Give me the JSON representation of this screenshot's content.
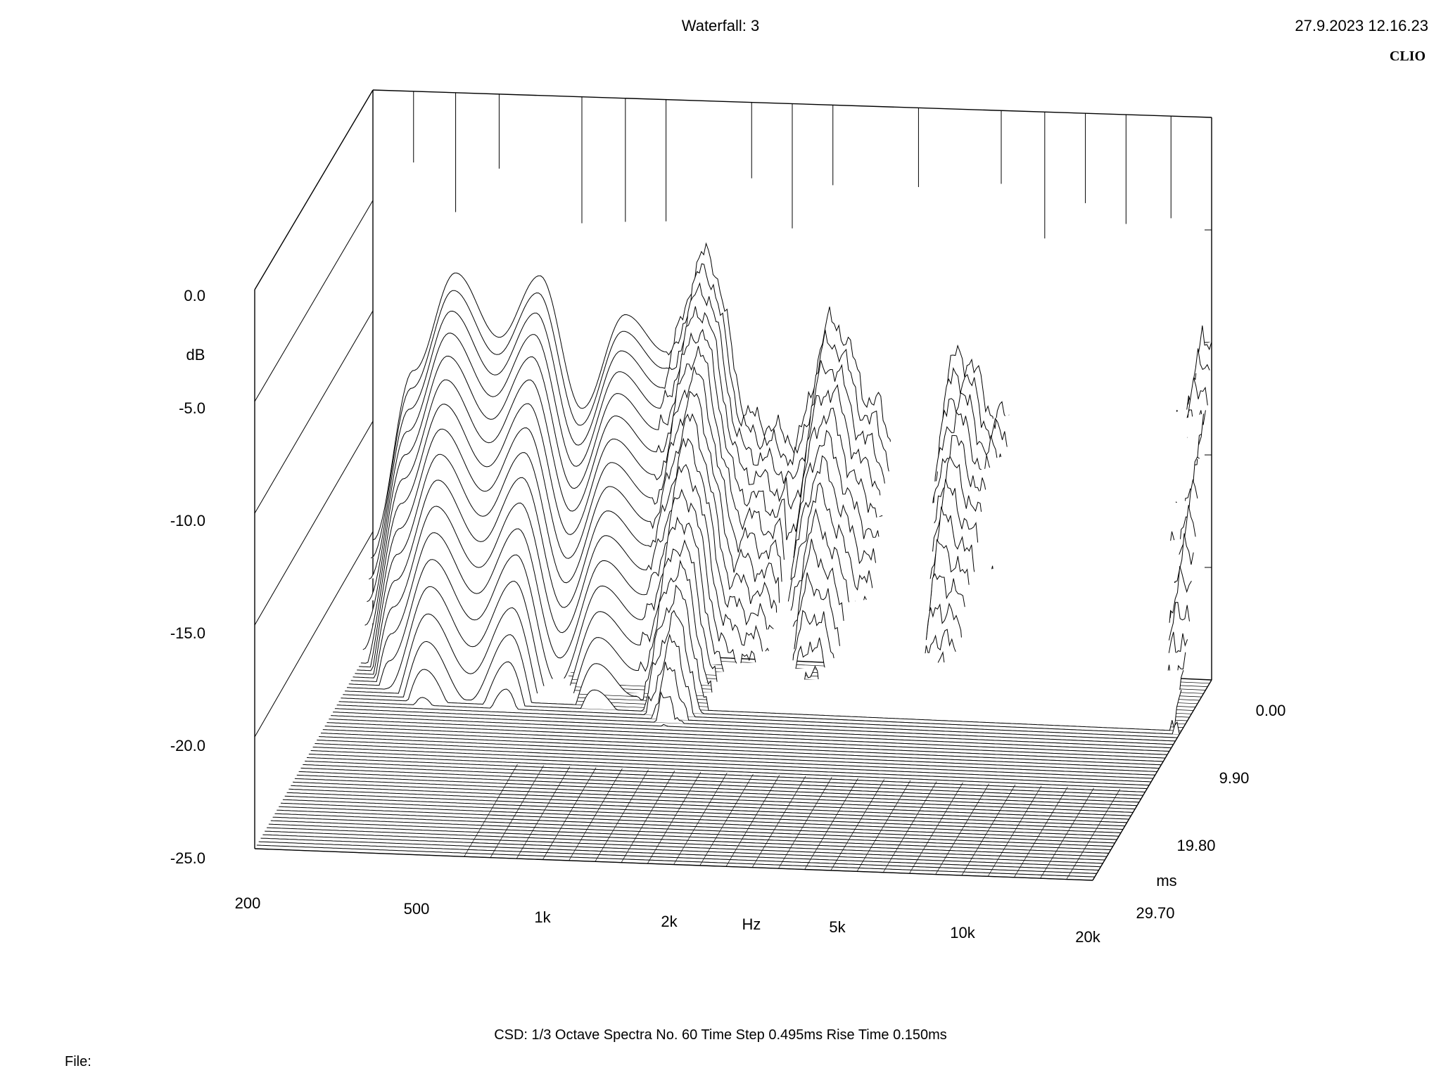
{
  "header": {
    "title": "Waterfall: 3",
    "datetime": "27.9.2023 12.16.23",
    "brand": "CLIO"
  },
  "footer": {
    "info": "CSD:   1/3 Octave   Spectra No. 60   Time Step 0.495ms   Rise Time 0.150ms",
    "file_label": "File:"
  },
  "chart_data": {
    "type": "waterfall",
    "title": "Waterfall: 3",
    "zlabel": "dB",
    "xlabel": "Hz",
    "ylabel": "ms",
    "x_scale": "log",
    "xlim": [
      200,
      20000
    ],
    "zlim": [
      -25,
      0
    ],
    "ylim": [
      0,
      29.7
    ],
    "z_ticks": [
      "0.0",
      "-5.0",
      "-10.0",
      "-15.0",
      "-20.0",
      "-25.0"
    ],
    "x_ticks": [
      "200",
      "500",
      "1k",
      "2k",
      "5k",
      "10k",
      "20k"
    ],
    "y_ticks": [
      "0.00",
      "9.90",
      "19.80",
      "29.70"
    ],
    "spectra_count": 60,
    "time_step_ms": 0.495,
    "frequencies_hz": [
      200,
      250,
      315,
      400,
      500,
      630,
      800,
      1000,
      1250,
      1600,
      2000,
      2500,
      3150,
      4000,
      5000,
      6300,
      8000,
      10000,
      12500,
      16000,
      20000
    ],
    "first_spectrum_db": [
      -17.5,
      -8,
      -2.5,
      -6,
      -2.5,
      -9.8,
      -4.5,
      -6.5,
      -1,
      -10,
      -11,
      -4,
      -8.5,
      -15.5,
      -5.5,
      -9,
      -12.5,
      -12.5,
      -12,
      -8.5,
      -4.5
    ],
    "line_color": "#000000"
  }
}
